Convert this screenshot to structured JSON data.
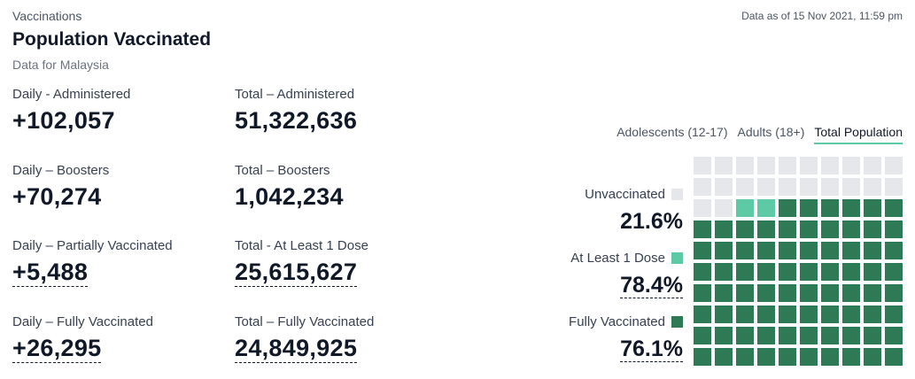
{
  "header": {
    "eyebrow": "Vaccinations",
    "title": "Population Vaccinated",
    "subtitle": "Data for Malaysia",
    "as_of": "Data as of 15 Nov 2021, 11:59 pm"
  },
  "stats": [
    {
      "label": "Daily - Administered",
      "value": "+102,057"
    },
    {
      "label": "Total – Administered",
      "value": "51,322,636"
    },
    {
      "label": "Daily – Boosters",
      "value": "+70,274"
    },
    {
      "label": "Total – Boosters",
      "value": "1,042,234"
    },
    {
      "label": "Daily – Partially Vaccinated",
      "value": "+5,488"
    },
    {
      "label": "Total - At Least 1 Dose",
      "value": "25,615,627"
    },
    {
      "label": "Daily – Fully Vaccinated",
      "value": "+26,295"
    },
    {
      "label": "Total – Fully Vaccinated",
      "value": "24,849,925"
    }
  ],
  "tabs": [
    {
      "label": "Adolescents (12-17)",
      "active": false
    },
    {
      "label": "Adults (18+)",
      "active": false
    },
    {
      "label": "Total Population",
      "active": true
    }
  ],
  "legend": [
    {
      "label": "Unvaccinated",
      "value": "21.6%",
      "color": "#e5e7eb"
    },
    {
      "label": "At Least 1 Dose",
      "value": "78.4%",
      "color": "#5ec9a5"
    },
    {
      "label": "Fully Vaccinated",
      "value": "76.1%",
      "color": "#2e7a57"
    }
  ],
  "waffle": {
    "total_cells": 100,
    "unvaccinated_cells": 22,
    "partial_cells": 2,
    "full_cells": 76,
    "colors": {
      "unvaccinated": "#e5e7eb",
      "partial": "#5ec9a5",
      "full": "#2e7a57"
    }
  }
}
